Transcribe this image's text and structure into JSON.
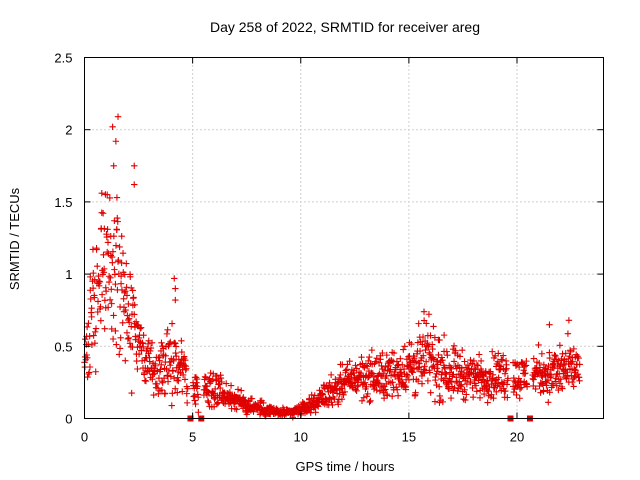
{
  "chart_data": {
    "type": "scatter",
    "title": "Day 258 of 2022, SRMTID for receiver areg",
    "xlabel": "GPS time / hours",
    "ylabel": "SRMTID / TECUs",
    "xlim": [
      0,
      24
    ],
    "ylim": [
      0,
      2.5
    ],
    "x_ticks": [
      0,
      5,
      10,
      15,
      20
    ],
    "x_tick_labels": [
      "0",
      "5",
      "10",
      "15",
      "20"
    ],
    "y_ticks": [
      0,
      0.5,
      1,
      1.5,
      2,
      2.5
    ],
    "y_tick_labels": [
      "0",
      "0.5",
      "1",
      "1.5",
      "2",
      "2.5"
    ],
    "grid": true,
    "marker": "plus",
    "series_color": "#e00000",
    "envelope": {
      "description": "approximate mean level and spread of SRMTID values versus time, in hours and TECU",
      "hours": [
        0.0,
        0.3,
        0.6,
        0.9,
        1.2,
        1.5,
        1.8,
        2.1,
        2.4,
        2.7,
        3.0,
        3.5,
        4.0,
        4.5,
        5.0,
        5.5,
        6.0,
        6.5,
        7.0,
        7.5,
        8.0,
        8.5,
        9.0,
        9.5,
        10.0,
        10.5,
        11.0,
        11.5,
        12.0,
        12.5,
        13.0,
        13.5,
        14.0,
        14.5,
        15.0,
        15.5,
        16.0,
        16.5,
        17.0,
        17.5,
        18.0,
        18.5,
        19.0,
        19.5,
        20.0,
        20.5,
        21.0,
        21.5,
        22.0,
        22.5,
        22.9
      ],
      "mean": [
        0.35,
        0.65,
        0.95,
        1.05,
        1.05,
        0.95,
        0.85,
        0.75,
        0.62,
        0.45,
        0.35,
        0.32,
        0.42,
        0.38,
        0.2,
        0.2,
        0.24,
        0.16,
        0.13,
        0.1,
        0.07,
        0.06,
        0.04,
        0.04,
        0.06,
        0.1,
        0.15,
        0.2,
        0.25,
        0.28,
        0.3,
        0.28,
        0.3,
        0.32,
        0.36,
        0.38,
        0.42,
        0.35,
        0.33,
        0.3,
        0.3,
        0.28,
        0.3,
        0.3,
        0.28,
        0.3,
        0.33,
        0.3,
        0.33,
        0.35,
        0.33
      ],
      "spread": [
        0.18,
        0.3,
        0.4,
        0.45,
        0.45,
        0.42,
        0.38,
        0.32,
        0.25,
        0.15,
        0.12,
        0.12,
        0.2,
        0.15,
        0.1,
        0.08,
        0.1,
        0.07,
        0.06,
        0.05,
        0.04,
        0.03,
        0.02,
        0.02,
        0.03,
        0.04,
        0.06,
        0.08,
        0.09,
        0.1,
        0.12,
        0.12,
        0.12,
        0.12,
        0.15,
        0.18,
        0.2,
        0.16,
        0.14,
        0.12,
        0.1,
        0.1,
        0.12,
        0.12,
        0.1,
        0.12,
        0.12,
        0.12,
        0.14,
        0.14,
        0.1
      ]
    },
    "peaks": [
      {
        "hour": 1.55,
        "value": 2.09
      },
      {
        "hour": 1.3,
        "value": 2.02
      },
      {
        "hour": 1.45,
        "value": 1.92
      },
      {
        "hour": 2.3,
        "value": 1.75
      },
      {
        "hour": 1.35,
        "value": 1.75
      },
      {
        "hour": 2.3,
        "value": 1.62
      },
      {
        "hour": 0.8,
        "value": 1.56
      },
      {
        "hour": 1.05,
        "value": 1.55
      },
      {
        "hour": 1.5,
        "value": 1.53
      },
      {
        "hour": 4.15,
        "value": 0.97
      },
      {
        "hour": 4.2,
        "value": 0.9
      },
      {
        "hour": 4.2,
        "value": 0.82
      },
      {
        "hour": 15.7,
        "value": 0.74
      },
      {
        "hour": 22.4,
        "value": 0.68
      },
      {
        "hour": 21.5,
        "value": 0.65
      }
    ],
    "data_gaps_hours": [
      4.9,
      5.4,
      19.7,
      20.6
    ],
    "data_range_hours": [
      0.0,
      22.9
    ]
  }
}
